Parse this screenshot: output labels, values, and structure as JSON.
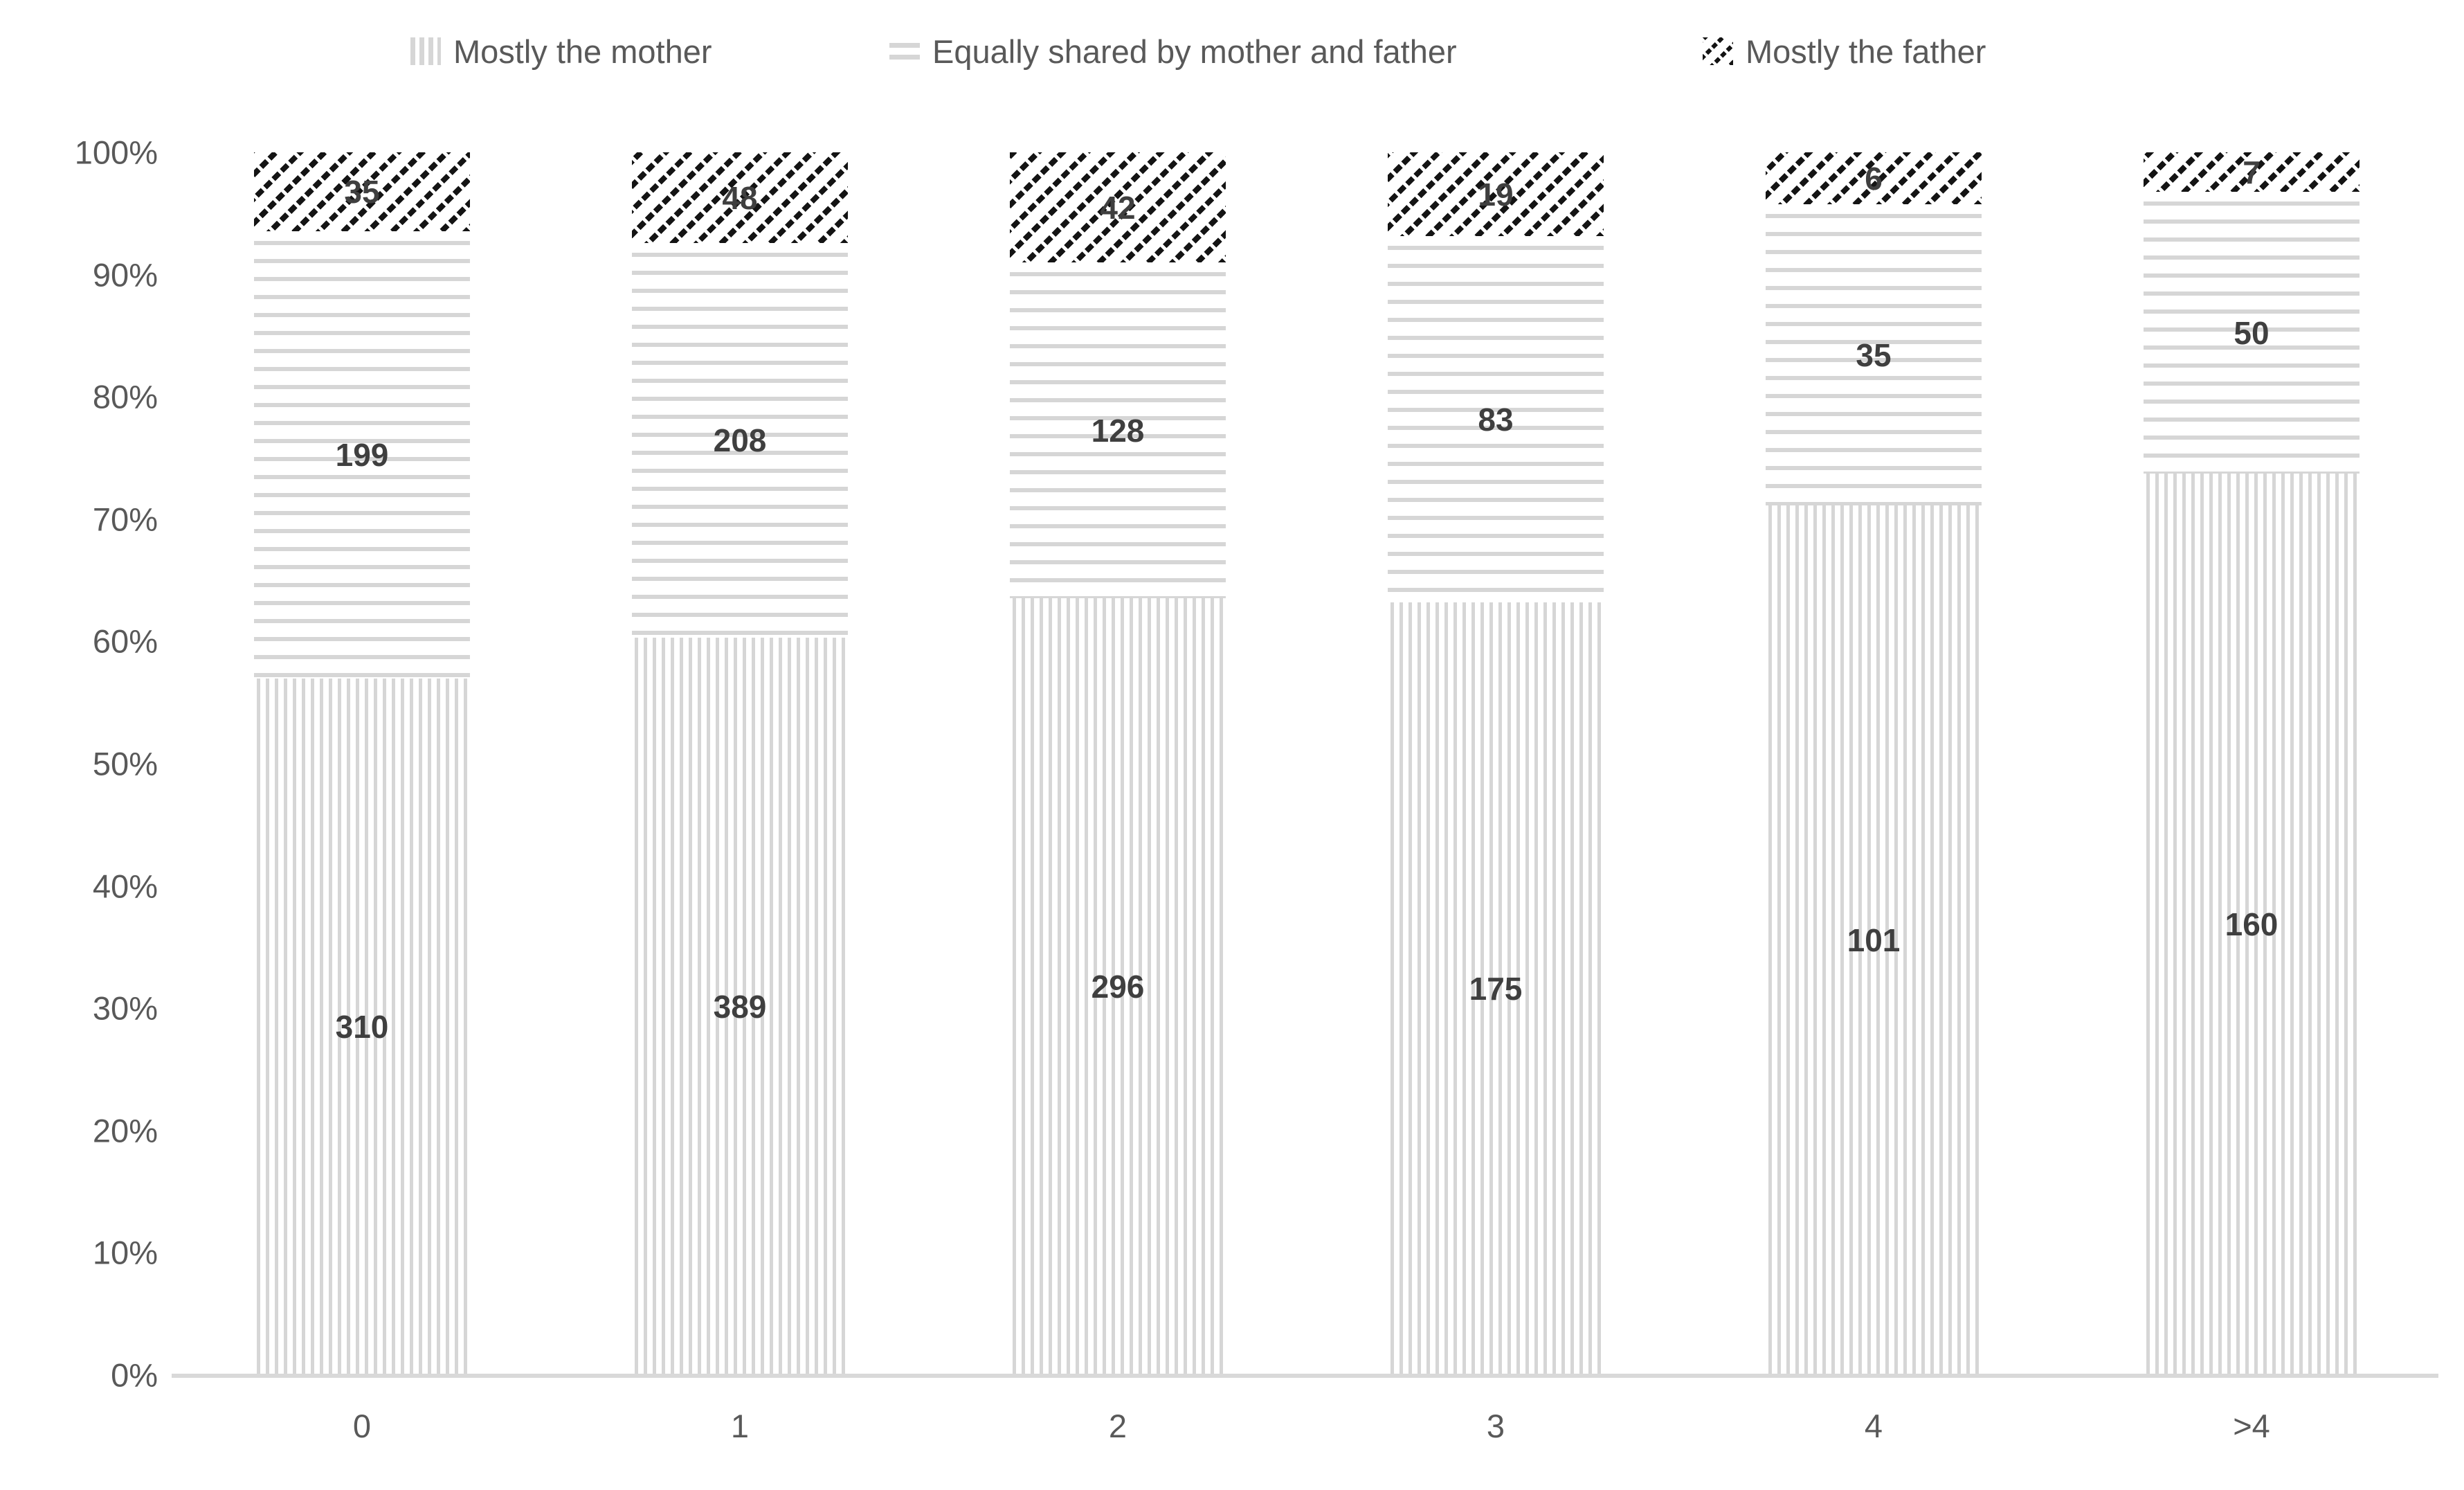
{
  "chart_data": {
    "type": "bar",
    "subtype": "stacked-100-percent",
    "categories": [
      "0",
      "1",
      "2",
      "3",
      "4",
      ">4"
    ],
    "series": [
      {
        "name": "Mostly the mother",
        "pattern": "vertical-lines",
        "values": [
          310,
          389,
          296,
          175,
          101,
          160
        ]
      },
      {
        "name": "Equally shared by mother and father",
        "pattern": "horizontal-lines",
        "values": [
          199,
          208,
          128,
          83,
          35,
          50
        ]
      },
      {
        "name": "Mostly the father",
        "pattern": "diagonal-hatch",
        "values": [
          35,
          48,
          42,
          19,
          6,
          7
        ]
      }
    ],
    "y_ticks": [
      "100%",
      "90%",
      "80%",
      "70%",
      "60%",
      "50%",
      "40%",
      "30%",
      "20%",
      "10%",
      "0%"
    ],
    "ylim": [
      0,
      100
    ],
    "legend_position": "top",
    "grid": false,
    "colors": {
      "pattern_gray": "#d6d6d6",
      "hatch_black": "#141414",
      "data_label": "#3f3f3f",
      "axis_text": "#595959",
      "axis_line": "#d9d9d9",
      "background": "#ffffff"
    }
  }
}
